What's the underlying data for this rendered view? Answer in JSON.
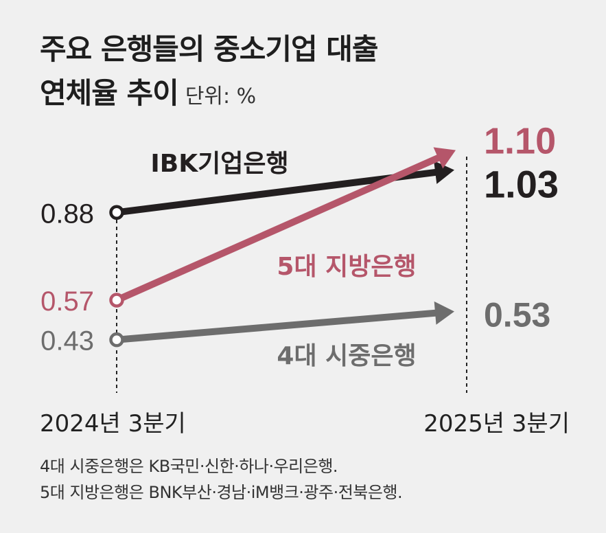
{
  "title": {
    "line1": "주요 은행들의 중소기업 대출",
    "line2": "연체율 추이",
    "unit": "단위: %"
  },
  "chart_data": {
    "type": "line",
    "categories": [
      "2024년 3분기",
      "2025년 3분기"
    ],
    "series": [
      {
        "name": "IBK기업은행",
        "values": [
          0.88,
          1.03
        ],
        "color": "#231f20"
      },
      {
        "name": "5대 지방은행",
        "values": [
          0.57,
          1.1
        ],
        "color": "#b5566a"
      },
      {
        "name": "4대 시중은행",
        "values": [
          0.43,
          0.53
        ],
        "color": "#6d6d6d"
      }
    ],
    "start_labels": [
      "0.88",
      "0.57",
      "0.43"
    ],
    "end_labels": [
      "1.03",
      "1.10",
      "0.53"
    ]
  },
  "notes": [
    "4대 시중은행은 KB국민·신한·하나·우리은행.",
    "5대 지방은행은 BNK부산·경남·iM뱅크·광주·전북은행."
  ]
}
